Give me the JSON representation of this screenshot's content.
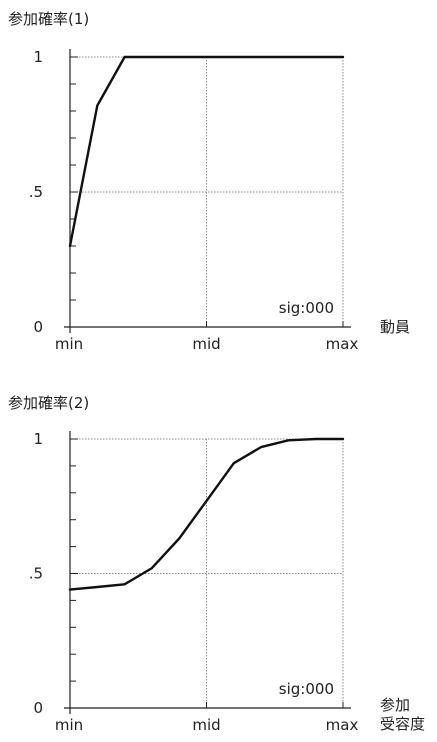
{
  "chart_data": [
    {
      "type": "line",
      "title": "参加確率(1)",
      "xlabel": "動員",
      "xlabel_lines": [
        "動員"
      ],
      "x_ticks": [
        "min",
        "mid",
        "max"
      ],
      "y_ticks": [
        "1",
        ".5",
        "0"
      ],
      "ylim": [
        0,
        1
      ],
      "xlim": [
        0,
        1
      ],
      "grid": true,
      "annotation": "sig:000",
      "series": [
        {
          "x": [
            0,
            0.1,
            0.2,
            0.3,
            0.4,
            0.5,
            0.6,
            0.7,
            0.8,
            0.9,
            1.0
          ],
          "values": [
            0.3,
            0.82,
            1.0,
            1.0,
            1.0,
            1.0,
            1.0,
            1.0,
            1.0,
            1.0,
            1.0
          ]
        }
      ]
    },
    {
      "type": "line",
      "title": "参加確率(2)",
      "xlabel": "参加 受容度",
      "xlabel_lines": [
        "参加",
        "受容度"
      ],
      "x_ticks": [
        "min",
        "mid",
        "max"
      ],
      "y_ticks": [
        "1",
        ".5",
        "0"
      ],
      "ylim": [
        0,
        1
      ],
      "xlim": [
        0,
        1
      ],
      "grid": true,
      "annotation": "sig:000",
      "series": [
        {
          "x": [
            0,
            0.1,
            0.2,
            0.3,
            0.4,
            0.5,
            0.6,
            0.7,
            0.8,
            0.9,
            1.0
          ],
          "values": [
            0.44,
            0.45,
            0.46,
            0.52,
            0.63,
            0.77,
            0.91,
            0.97,
            0.995,
            1.0,
            1.0
          ]
        }
      ]
    }
  ]
}
